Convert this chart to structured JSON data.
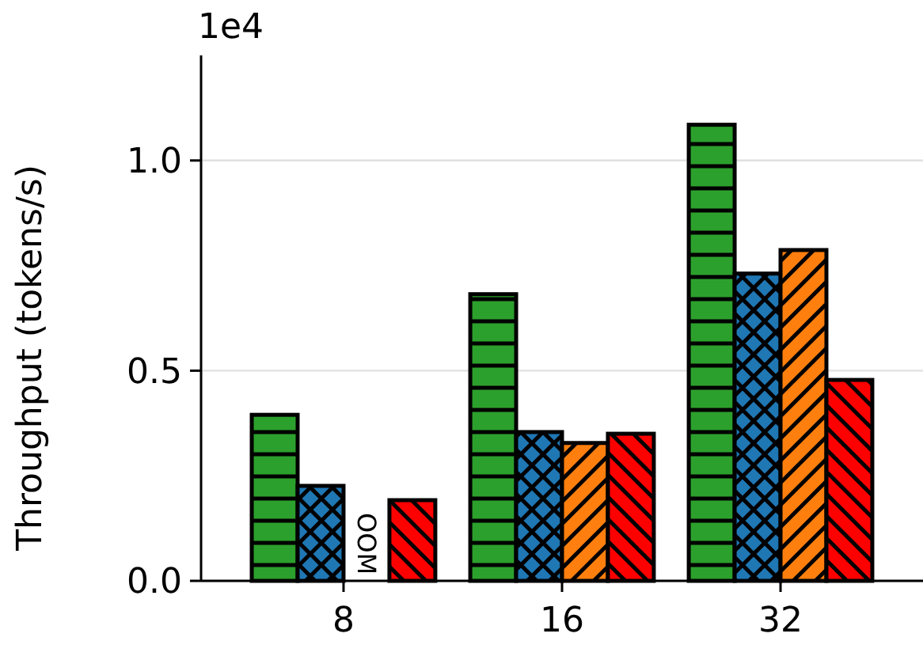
{
  "chart_data": {
    "type": "bar",
    "ylabel": "Throughput (tokens/s)",
    "categories": [
      "8",
      "16",
      "32"
    ],
    "series": [
      {
        "color": "#2ca02c",
        "values": [
          0.395,
          0.682,
          1.085
        ]
      },
      {
        "color": "#1f77b4",
        "values": [
          0.226,
          0.354,
          0.731
        ]
      },
      {
        "color": "#ff7f0e",
        "values": [
          null,
          0.328,
          0.787
        ]
      },
      {
        "color": "#ff0000",
        "values": [
          0.192,
          0.35,
          0.478
        ]
      }
    ],
    "ylim": [
      0,
      1.25
    ],
    "yticks": [
      {
        "value": 0,
        "label": "0.0"
      },
      0.5,
      {
        "value": 1,
        "label": "1.0"
      }
    ],
    "grid": "y",
    "annotations": [
      "1e4",
      {
        "text": "OOM",
        "x": "8",
        "y": 0
      }
    ]
  }
}
